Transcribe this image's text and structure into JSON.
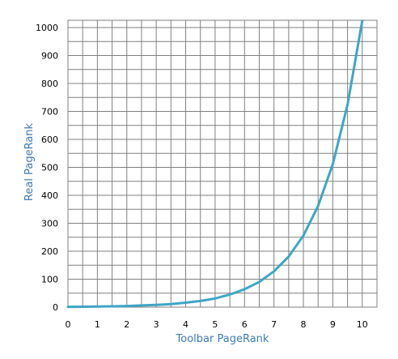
{
  "chart_data": {
    "type": "line",
    "title": "",
    "xlabel": "Toolbar PageRank",
    "ylabel": "Real PageRank",
    "xlim": [
      0,
      10.5
    ],
    "ylim": [
      0,
      1000
    ],
    "x_ticks": [
      "0",
      "1",
      "2",
      "3",
      "4",
      "5",
      "6",
      "7",
      "8",
      "9",
      "10"
    ],
    "y_ticks": [
      "0",
      "100",
      "200",
      "300",
      "400",
      "500",
      "600",
      "700",
      "800",
      "900",
      "1000"
    ],
    "grid": true,
    "series": [
      {
        "name": "",
        "color": "#3ea6c6",
        "x": [
          0,
          0.5,
          1,
          1.5,
          2,
          2.5,
          3,
          3.5,
          4,
          4.5,
          5,
          5.5,
          6,
          6.5,
          7,
          7.5,
          8,
          8.5,
          9,
          9.5,
          10
        ],
        "y": [
          1,
          1.5,
          2,
          3,
          4,
          6,
          8,
          11,
          16,
          22,
          31,
          45,
          64,
          90,
          128,
          181,
          256,
          362,
          512,
          724,
          1024
        ]
      }
    ],
    "colors": {
      "axis_text": "#3a7ab8",
      "grid": "#808080",
      "tick_text": "#000000"
    }
  }
}
